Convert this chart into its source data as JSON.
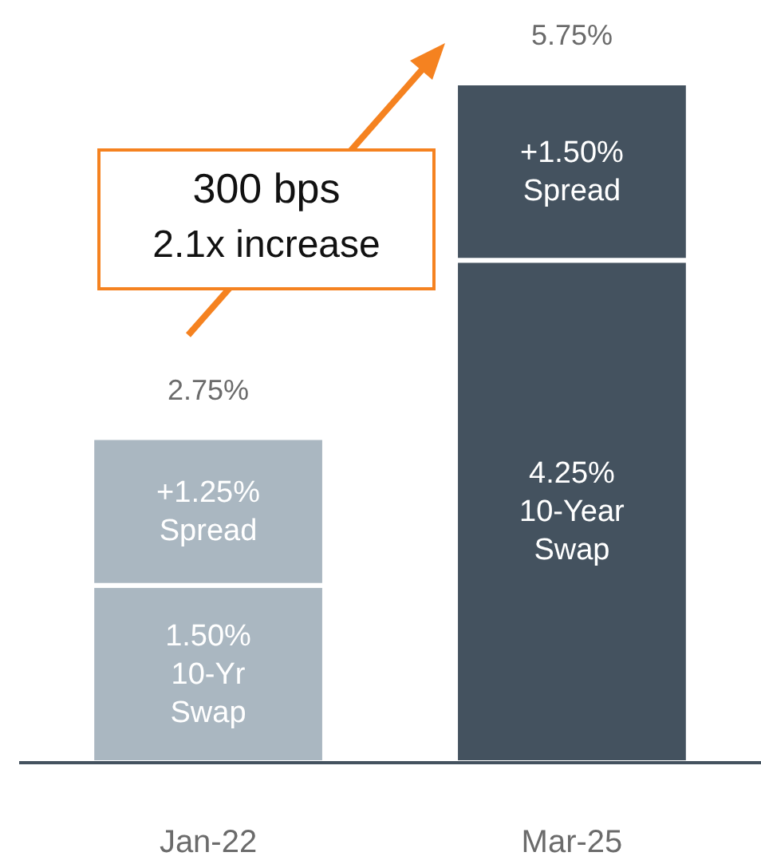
{
  "chart_data": {
    "type": "bar",
    "stacked": true,
    "categories": [
      "Jan-22",
      "Mar-25"
    ],
    "tick_labels": "x",
    "series": [
      {
        "colors": [
          "#aab7c1",
          "#44525f"
        ],
        "values": [
          1.5,
          4.25
        ],
        "value_labels": [
          "1.50%\n10-Yr\nSwap",
          "4.25%\n10-Year\nSwap"
        ]
      },
      {
        "colors": [
          "#aab7c1",
          "#44525f"
        ],
        "values": [
          1.25,
          1.5
        ],
        "value_labels": [
          "+1.25%\nSpread",
          "+1.50%\nSpread"
        ]
      }
    ],
    "totals": [
      "2.75%",
      "5.75%"
    ],
    "annotations": [
      "300 bps\n2.1x increase"
    ]
  }
}
